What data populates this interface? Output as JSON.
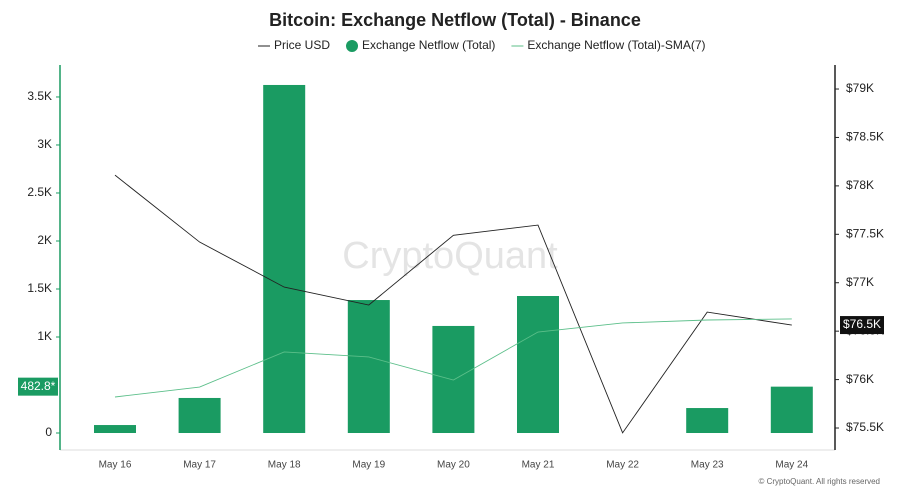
{
  "chart_data": {
    "type": "bar",
    "title": "Bitcoin: Exchange Netflow (Total) - Binance",
    "watermark": "CryptoQuant",
    "footer": "© CryptoQuant. All rights reserved",
    "categories": [
      "May 16",
      "May 17",
      "May 18",
      "May 19",
      "May 20",
      "May 21",
      "May 22",
      "May 23",
      "May 24"
    ],
    "series": [
      {
        "name": "Price USD",
        "type": "line",
        "axis": "y2",
        "color": "#222222",
        "values": [
          78111,
          77420,
          76955,
          76770,
          77490,
          77595,
          75450,
          76697,
          76563
        ]
      },
      {
        "name": "Exchange Netflow (Total)",
        "type": "bar",
        "color": "#1a9b62",
        "values": [
          83,
          365,
          3625,
          1385,
          1115,
          1427,
          0,
          260,
          482.8
        ]
      },
      {
        "name": "Exchange Netflow (Total)-SMA(7)",
        "type": "line",
        "color": "#5cbf8a",
        "values": [
          375,
          479,
          844,
          792,
          552,
          1052,
          1146,
          1177,
          1188
        ]
      }
    ],
    "last_labels": {
      "y": "482.8*",
      "y2": "$76.5K"
    },
    "ylim": [
      -177,
      3833
    ],
    "yticks": [
      0,
      {
        "value": 1000,
        "label": "1K"
      },
      {
        "value": 1500,
        "label": "1.5K"
      },
      {
        "value": 2000,
        "label": "2K"
      },
      {
        "value": 2500,
        "label": "2.5K"
      },
      {
        "value": 3000,
        "label": "3K"
      },
      {
        "value": 3500,
        "label": "3.5K"
      }
    ],
    "y2lim": [
      75273,
      79248
    ],
    "y2ticks": [
      {
        "value": 75500,
        "label": "$75.5K"
      },
      {
        "value": 76000,
        "label": "$76K"
      },
      {
        "value": 76500,
        "label": "$76.5K"
      },
      {
        "value": 77000,
        "label": "$77K"
      },
      {
        "value": 77500,
        "label": "$77.5K"
      },
      {
        "value": 78000,
        "label": "$78K"
      },
      {
        "value": 78500,
        "label": "$78.5K"
      },
      {
        "value": 79000,
        "label": "$79K"
      }
    ]
  }
}
